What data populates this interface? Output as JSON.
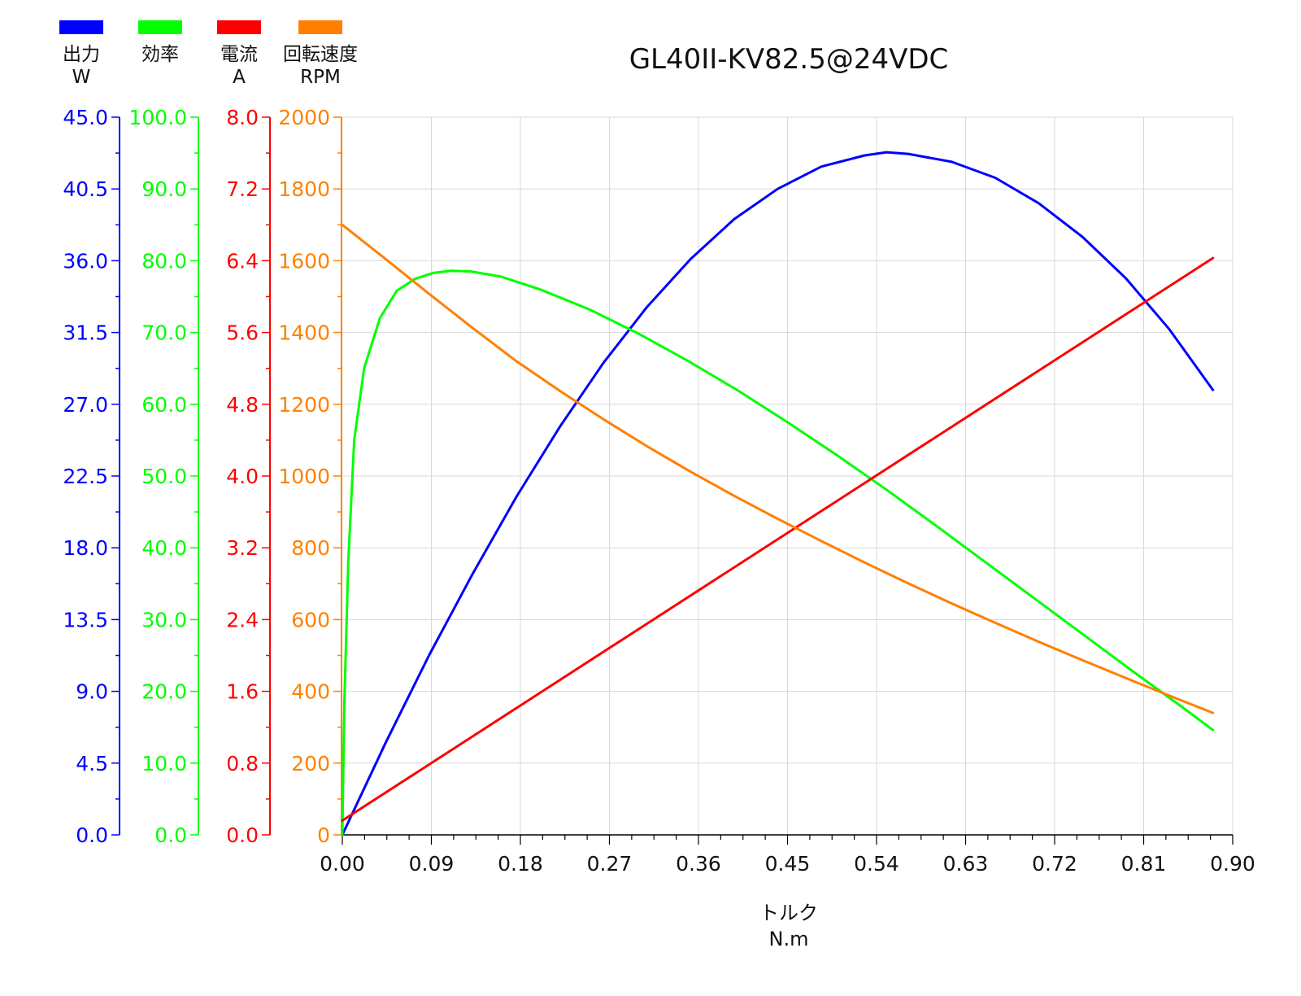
{
  "chart_data": {
    "type": "line",
    "title": "GL40II-KV82.5@24VDC",
    "xlabel": "トルク",
    "xunit": "N.m",
    "xlim": [
      0,
      0.9
    ],
    "xticks": [
      "0.00",
      "0.09",
      "0.18",
      "0.27",
      "0.36",
      "0.45",
      "0.54",
      "0.63",
      "0.72",
      "0.81",
      "0.90"
    ],
    "grid": true,
    "legend_position": "top-left",
    "axes": [
      {
        "id": "output",
        "label": "出力",
        "unit": "W",
        "color": "#0000ff",
        "ylim": [
          0,
          45
        ],
        "ticks": [
          "0.0",
          "4.5",
          "9.0",
          "13.5",
          "18.0",
          "22.5",
          "27.0",
          "31.5",
          "36.0",
          "40.5",
          "45.0"
        ]
      },
      {
        "id": "efficiency",
        "label": "効率",
        "unit": "",
        "color": "#00ff00",
        "ylim": [
          0,
          100
        ],
        "ticks": [
          "0.0",
          "10.0",
          "20.0",
          "30.0",
          "40.0",
          "50.0",
          "60.0",
          "70.0",
          "80.0",
          "90.0",
          "100.0"
        ]
      },
      {
        "id": "current",
        "label": "電流",
        "unit": "A",
        "color": "#ff0000",
        "ylim": [
          0,
          8
        ],
        "ticks": [
          "0.0",
          "0.8",
          "1.6",
          "2.4",
          "3.2",
          "4.0",
          "4.8",
          "5.6",
          "6.4",
          "7.2",
          "8.0"
        ]
      },
      {
        "id": "speed",
        "label": "回転速度",
        "unit": "RPM",
        "color": "#ff8000",
        "ylim": [
          0,
          2000
        ],
        "ticks": [
          "0",
          "200",
          "400",
          "600",
          "800",
          "1000",
          "1200",
          "1400",
          "1600",
          "1800",
          "2000"
        ]
      }
    ],
    "series": [
      {
        "name": "出力",
        "axis": "output",
        "color": "#0000ff",
        "x": [
          0,
          0.044,
          0.088,
          0.132,
          0.176,
          0.22,
          0.264,
          0.308,
          0.352,
          0.396,
          0.44,
          0.484,
          0.528,
          0.55,
          0.572,
          0.616,
          0.66,
          0.704,
          0.748,
          0.792,
          0.836,
          0.88
        ],
        "y": [
          0,
          5.8,
          11.3,
          16.4,
          21.2,
          25.6,
          29.6,
          33.1,
          36.1,
          38.6,
          40.5,
          41.9,
          42.6,
          42.8,
          42.7,
          42.2,
          41.2,
          39.6,
          37.5,
          34.9,
          31.7,
          27.9
        ]
      },
      {
        "name": "効率",
        "axis": "efficiency",
        "color": "#00ff00",
        "x": [
          0,
          0.002,
          0.006,
          0.012,
          0.022,
          0.038,
          0.055,
          0.074,
          0.092,
          0.11,
          0.13,
          0.16,
          0.2,
          0.25,
          0.3,
          0.35,
          0.4,
          0.45,
          0.5,
          0.55,
          0.6,
          0.65,
          0.7,
          0.75,
          0.8,
          0.85,
          0.88
        ],
        "y": [
          0,
          18.0,
          38.0,
          55.0,
          65.0,
          72.0,
          75.8,
          77.5,
          78.3,
          78.6,
          78.5,
          77.8,
          76.0,
          73.2,
          69.8,
          66.0,
          61.9,
          57.5,
          52.9,
          48.1,
          43.1,
          38.0,
          32.9,
          27.8,
          22.7,
          17.7,
          14.6
        ]
      },
      {
        "name": "電流",
        "axis": "current",
        "color": "#ff0000",
        "x": [
          0,
          0.88
        ],
        "y": [
          0.16,
          6.43
        ]
      },
      {
        "name": "回転速度",
        "axis": "speed",
        "color": "#ff8000",
        "x": [
          0,
          0.044,
          0.088,
          0.132,
          0.176,
          0.22,
          0.264,
          0.308,
          0.352,
          0.396,
          0.44,
          0.484,
          0.528,
          0.572,
          0.616,
          0.66,
          0.704,
          0.748,
          0.792,
          0.836,
          0.88
        ],
        "y": [
          1700,
          1604,
          1507,
          1412,
          1320,
          1237,
          1158,
          1083,
          1012,
          945,
          881,
          819,
          759,
          701,
          645,
          591,
          538,
          487,
          437,
          388,
          340
        ]
      }
    ]
  }
}
